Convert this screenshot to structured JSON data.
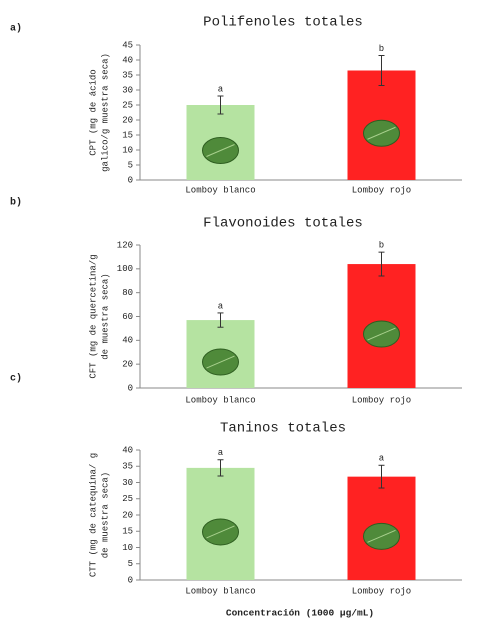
{
  "chart_data": [
    {
      "type": "bar",
      "panel": "a)",
      "title": "Polifenoles totales",
      "ylabel": [
        "CPT (mg de ácido",
        "galico/g muestra seca)"
      ],
      "categories": [
        "Lomboy blanco",
        "Lomboy rojo"
      ],
      "values": [
        25,
        36.5
      ],
      "errors": [
        3,
        5
      ],
      "letters": [
        "a",
        "b"
      ],
      "colors": [
        "#b5e3a1",
        "#ff2222"
      ],
      "ylim": [
        0,
        45
      ],
      "yticks": [
        0,
        5,
        10,
        15,
        20,
        25,
        30,
        35,
        40,
        45
      ]
    },
    {
      "type": "bar",
      "panel": "b)",
      "title": "Flavonoides totales",
      "ylabel": [
        "CFT (mg de quercetina/g",
        "de muestra seca)"
      ],
      "categories": [
        "Lomboy blanco",
        "Lomboy rojo"
      ],
      "values": [
        57,
        104
      ],
      "errors": [
        6,
        10
      ],
      "letters": [
        "a",
        "b"
      ],
      "colors": [
        "#b5e3a1",
        "#ff2222"
      ],
      "ylim": [
        0,
        120
      ],
      "yticks": [
        0,
        20,
        40,
        60,
        80,
        100,
        120
      ]
    },
    {
      "type": "bar",
      "panel": "c)",
      "title": "Taninos totales",
      "ylabel": [
        "CTT (mg de catequina/ g",
        "de muestra seca)"
      ],
      "categories": [
        "Lomboy blanco",
        "Lomboy rojo"
      ],
      "values": [
        34.5,
        31.8
      ],
      "errors": [
        2.5,
        3.5
      ],
      "letters": [
        "a",
        "a"
      ],
      "colors": [
        "#b5e3a1",
        "#ff2222"
      ],
      "ylim": [
        0,
        40
      ],
      "yticks": [
        0,
        5,
        10,
        15,
        20,
        25,
        30,
        35,
        40
      ],
      "xlabel": "Concentración (1000 µg/mL)"
    }
  ]
}
